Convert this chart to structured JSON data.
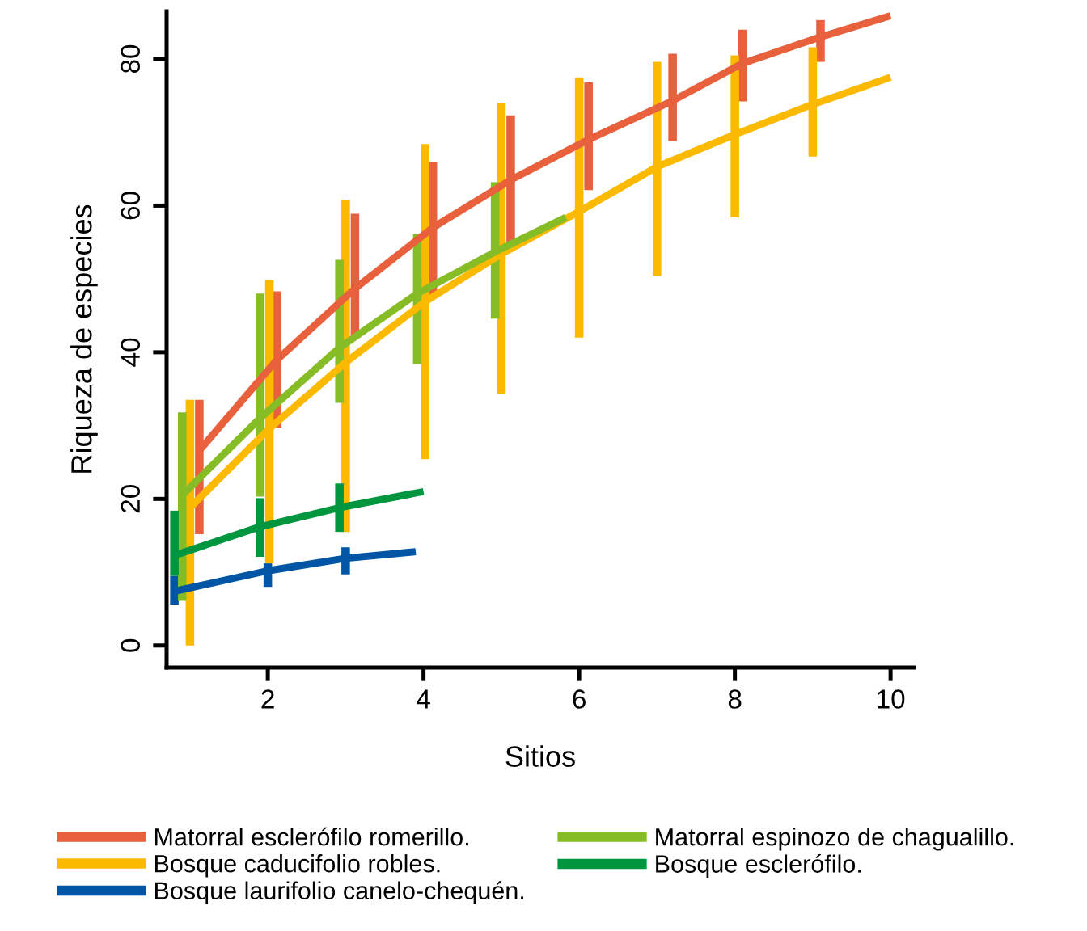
{
  "chart_data": {
    "type": "line",
    "xlabel": "Sitios",
    "ylabel": "Riqueza de especies",
    "xlim": [
      0.7,
      10.3
    ],
    "ylim": [
      -3,
      86.5
    ],
    "xticks": [
      2,
      4,
      6,
      8,
      10
    ],
    "yticks": [
      0,
      20,
      40,
      60,
      80
    ],
    "grid": false,
    "legend": "bottom",
    "marker": "none",
    "line_style": "solid",
    "series": [
      {
        "name": "Matorral esclerófilo romerillo.",
        "color": "#e8603c",
        "x": [
          1.12,
          2.12,
          3.12,
          4.12,
          5.12,
          6.12,
          7.2,
          8.1,
          9.1,
          10.0
        ],
        "values": [
          26.6,
          39.0,
          48.7,
          57.0,
          63.5,
          69.0,
          74.3,
          79.4,
          83.0,
          85.9
        ],
        "errors": [
          [
            15.2,
            33.5
          ],
          [
            29.7,
            48.3
          ],
          [
            42.0,
            58.9
          ],
          [
            47.8,
            66.0
          ],
          [
            54.1,
            72.3
          ],
          [
            62.1,
            76.8
          ],
          [
            68.8,
            80.7
          ],
          [
            74.2,
            84.0
          ],
          [
            79.6,
            85.3
          ],
          null
        ]
      },
      {
        "name": "Bosque caducifolio robles.",
        "color": "#fbb900",
        "x": [
          1.0,
          2.02,
          3.0,
          4.02,
          5.0,
          6.0,
          7.0,
          8.0,
          9.0,
          10.0
        ],
        "values": [
          18.8,
          29.6,
          38.6,
          46.9,
          53.4,
          59.2,
          65.3,
          69.7,
          73.8,
          77.5
        ],
        "errors": [
          [
            0,
            33.5
          ],
          [
            11.2,
            49.8
          ],
          [
            15.5,
            60.8
          ],
          [
            25.4,
            68.4
          ],
          [
            34.3,
            74.0
          ],
          [
            42.0,
            77.5
          ],
          [
            50.4,
            79.6
          ],
          [
            58.4,
            80.5
          ],
          [
            66.7,
            81.6
          ],
          null
        ]
      },
      {
        "name": "Bosque laurifolio canelo-chequén.",
        "color": "#0055a4",
        "x": [
          0.8,
          2.0,
          3.0,
          3.9
        ],
        "values": [
          7.4,
          10.2,
          11.9,
          12.8
        ],
        "errors": [
          [
            5.6,
            9.5
          ],
          [
            8.0,
            11.2
          ],
          [
            9.7,
            13.4
          ],
          null
        ]
      },
      {
        "name": "Matorral espinozo de chagualillo.",
        "color": "#86bc25",
        "x": [
          0.9,
          1.9,
          2.92,
          3.92,
          4.92,
          5.83
        ],
        "values": [
          20.5,
          31.0,
          40.6,
          48.0,
          53.7,
          58.4
        ],
        "errors": [
          [
            6.1,
            31.8
          ],
          [
            20.3,
            48.0
          ],
          [
            33.1,
            52.6
          ],
          [
            38.4,
            56.1
          ],
          [
            44.6,
            63.2
          ],
          null
        ]
      },
      {
        "name": "Bosque esclerófilo.",
        "color": "#009640",
        "x": [
          0.8,
          1.9,
          2.92,
          4.0
        ],
        "values": [
          12.3,
          16.2,
          18.8,
          21.0
        ],
        "errors": [
          [
            9.5,
            18.4
          ],
          [
            12.1,
            20.1
          ],
          [
            15.5,
            22.1
          ],
          null
        ]
      }
    ]
  }
}
